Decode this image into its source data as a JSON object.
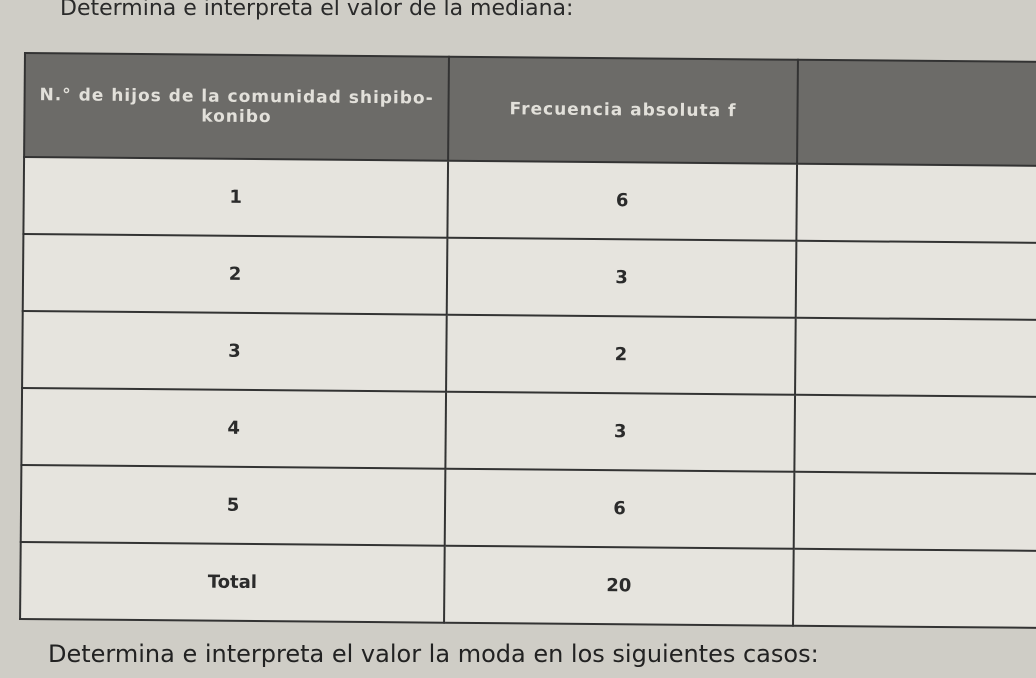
{
  "title": "Determina e interpreta el valor de la mediana:",
  "table": {
    "headers": [
      "N.° de hijos de la comunidad shipibo-konibo",
      "Frecuencia absoluta f",
      ""
    ],
    "rows": [
      {
        "n": "1",
        "f": "6"
      },
      {
        "n": "2",
        "f": "3"
      },
      {
        "n": "3",
        "f": "2"
      },
      {
        "n": "4",
        "f": "3"
      },
      {
        "n": "5",
        "f": "6"
      },
      {
        "n": "Total",
        "f": "20"
      }
    ]
  },
  "footer": "Determina e interpreta el valor la moda en los siguientes casos:"
}
